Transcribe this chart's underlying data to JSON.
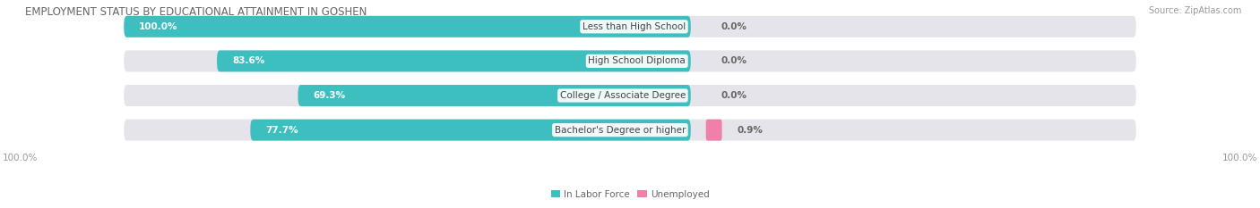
{
  "title": "EMPLOYMENT STATUS BY EDUCATIONAL ATTAINMENT IN GOSHEN",
  "source": "Source: ZipAtlas.com",
  "categories": [
    "Less than High School",
    "High School Diploma",
    "College / Associate Degree",
    "Bachelor's Degree or higher"
  ],
  "in_labor_force": [
    100.0,
    83.6,
    69.3,
    77.7
  ],
  "unemployed": [
    0.0,
    0.0,
    0.0,
    0.9
  ],
  "color_labor": "#3DBFBF",
  "color_unemployed": "#F07FAA",
  "color_bar_bg": "#E4E4EA",
  "color_bar_bg_right": "#DCDCE4",
  "legend_labor": "In Labor Force",
  "legend_unemployed": "Unemployed",
  "title_fontsize": 8.5,
  "source_fontsize": 7,
  "bar_label_fontsize": 7.5,
  "cat_label_fontsize": 7.5,
  "tick_fontsize": 7.5
}
